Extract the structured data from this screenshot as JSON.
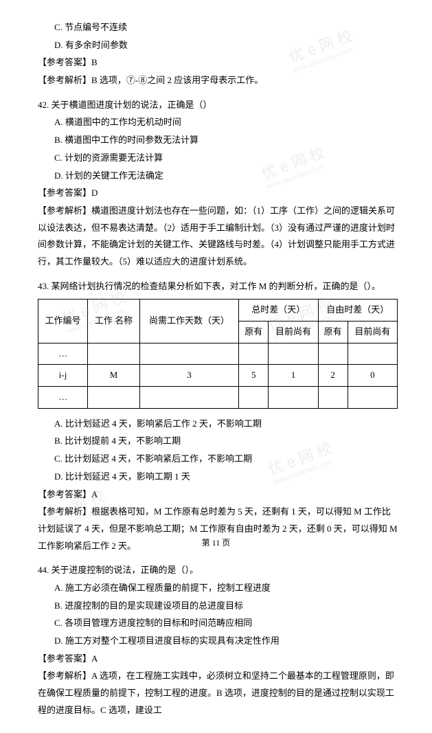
{
  "watermark": {
    "main": "优 e 网 校",
    "url": "www.youeclass.com",
    "e_color": "rgba(200,90,50,0.22)"
  },
  "q41": {
    "opt_c": "C. 节点编号不连续",
    "opt_d": "D. 有多余时间参数",
    "ans_label": "【参考答案】",
    "ans": "B",
    "exp_label": "【参考解析】",
    "exp": "B 选项，⑦-⑧之间 2 应该用字母表示工作。"
  },
  "q42": {
    "stem": "42. 关于横道图进度计划的说法，正确是（）",
    "opt_a": "A. 横道图中的工作均无机动时间",
    "opt_b": "B. 横道图中工作的时间参数无法计算",
    "opt_c": "C. 计划的资源需要无法计算",
    "opt_d": "D. 计划的关键工作无法确定",
    "ans_label": "【参考答案】",
    "ans": "D",
    "exp_label": "【参考解析】",
    "exp": "横道图进度计划法也存在一些问题，如：（1）工序（工作）之间的逻辑关系可以设法表达，但不易表达清楚。（2）适用于手工编制计划。（3）没有通过严谨的进度计划时间参数计算，不能确定计划的关键工作、关键路线与时差。（4）计划调整只能用手工方式进行，其工作量较大。（5）难以适应大的进度计划系统。"
  },
  "q43": {
    "stem": "43. 某网络计划执行情况的检查结果分析如下表，对工作 M 的判断分析，正确的是（）。",
    "table": {
      "head": {
        "col1": "工作编号",
        "col2": "工作 名称",
        "col3": "尚需工作天数（天）",
        "grp1": "总时差（天）",
        "grp2": "自由时差（天）",
        "sub1": "原有",
        "sub2": "目前尚有",
        "sub3": "原有",
        "sub4": "目前尚有"
      },
      "rows": [
        {
          "c1": "…",
          "c2": "",
          "c3": "",
          "c4": "",
          "c5": "",
          "c6": "",
          "c7": ""
        },
        {
          "c1": "i-j",
          "c2": "M",
          "c3": "3",
          "c4": "5",
          "c5": "1",
          "c6": "2",
          "c7": "0"
        },
        {
          "c1": "…",
          "c2": "",
          "c3": "",
          "c4": "",
          "c5": "",
          "c6": "",
          "c7": ""
        }
      ]
    },
    "opt_a": "A. 比计划延迟 4 天，影响紧后工作 2 天，不影响工期",
    "opt_b": "B. 比计划提前 4 天，不影响工期",
    "opt_c": "C. 比计划延迟 4 天，不影响紧后工作，不影响工期",
    "opt_d": "D. 比计划延迟 4 天，影响工期 1 天",
    "ans_label": "【参考答案】",
    "ans": "A",
    "exp_label": "【参考解析】",
    "exp": "根据表格可知，M 工作原有总时差为 5 天，还剩有 1 天，可以得知 M 工作比计划延误了 4 天，但是不影响总工期；M 工作原有自由时差为 2 天，还剩 0 天，可以得知 M 工作影响紧后工作 2 天。"
  },
  "q44": {
    "stem": "44. 关于进度控制的说法，正确的是（）。",
    "opt_a": "A. 施工方必须在确保工程质量的前提下，控制工程进度",
    "opt_b": "B. 进度控制的目的是实现建设项目的总进度目标",
    "opt_c": "C. 各项目管理方进度控制的目标和时间范畴应相同",
    "opt_d": "D. 施工方对整个工程项目进度目标的实现具有决定性作用",
    "ans_label": "【参考答案】",
    "ans": "A",
    "exp_label": "【参考解析】",
    "exp": "A 选项，在工程施工实践中，必须树立和坚持二个最基本的工程管理原则，即在确保工程质量的前提下，控制工程的进度。B 选项，进度控制的目的是通过控制以实现工程的进度目标。C 选项，建设工"
  },
  "footer": "第 11 页"
}
